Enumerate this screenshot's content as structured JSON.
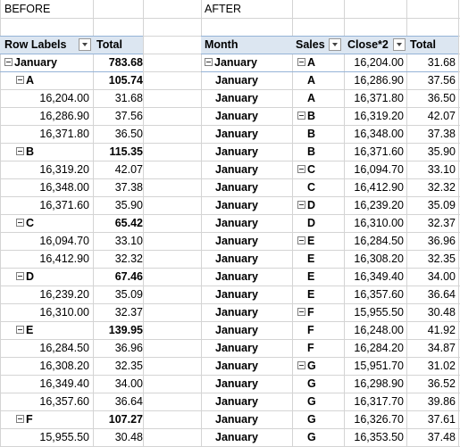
{
  "before": {
    "title": "BEFORE",
    "header": {
      "row_labels": "Row Labels",
      "total": "Total"
    },
    "rows": [
      {
        "kind": "group",
        "label": "January",
        "value": "783.68"
      },
      {
        "kind": "sub",
        "label": "A",
        "value": "105.74"
      },
      {
        "kind": "item",
        "label": "16,204.00",
        "value": "31.68"
      },
      {
        "kind": "item",
        "label": "16,286.90",
        "value": "37.56"
      },
      {
        "kind": "item",
        "label": "16,371.80",
        "value": "36.50"
      },
      {
        "kind": "sub",
        "label": "B",
        "value": "115.35"
      },
      {
        "kind": "item",
        "label": "16,319.20",
        "value": "42.07"
      },
      {
        "kind": "item",
        "label": "16,348.00",
        "value": "37.38"
      },
      {
        "kind": "item",
        "label": "16,371.60",
        "value": "35.90"
      },
      {
        "kind": "sub",
        "label": "C",
        "value": "65.42"
      },
      {
        "kind": "item",
        "label": "16,094.70",
        "value": "33.10"
      },
      {
        "kind": "item",
        "label": "16,412.90",
        "value": "32.32"
      },
      {
        "kind": "sub",
        "label": "D",
        "value": "67.46"
      },
      {
        "kind": "item",
        "label": "16,239.20",
        "value": "35.09"
      },
      {
        "kind": "item",
        "label": "16,310.00",
        "value": "32.37"
      },
      {
        "kind": "sub",
        "label": "E",
        "value": "139.95"
      },
      {
        "kind": "item",
        "label": "16,284.50",
        "value": "36.96"
      },
      {
        "kind": "item",
        "label": "16,308.20",
        "value": "32.35"
      },
      {
        "kind": "item",
        "label": "16,349.40",
        "value": "34.00"
      },
      {
        "kind": "item",
        "label": "16,357.60",
        "value": "36.64"
      },
      {
        "kind": "sub",
        "label": "F",
        "value": "107.27"
      },
      {
        "kind": "item",
        "label": "15,955.50",
        "value": "30.48"
      }
    ]
  },
  "after": {
    "title": "AFTER",
    "header": {
      "month": "Month",
      "sales": "Sales",
      "close": "Close*2",
      "total": "Total"
    },
    "rows": [
      {
        "month": "January",
        "month_expander": true,
        "sales": "A",
        "sales_expander": true,
        "close": "16,204.00",
        "total": "31.68"
      },
      {
        "month": "January",
        "month_expander": false,
        "sales": "A",
        "sales_expander": false,
        "close": "16,286.90",
        "total": "37.56"
      },
      {
        "month": "January",
        "month_expander": false,
        "sales": "A",
        "sales_expander": false,
        "close": "16,371.80",
        "total": "36.50"
      },
      {
        "month": "January",
        "month_expander": false,
        "sales": "B",
        "sales_expander": true,
        "close": "16,319.20",
        "total": "42.07"
      },
      {
        "month": "January",
        "month_expander": false,
        "sales": "B",
        "sales_expander": false,
        "close": "16,348.00",
        "total": "37.38"
      },
      {
        "month": "January",
        "month_expander": false,
        "sales": "B",
        "sales_expander": false,
        "close": "16,371.60",
        "total": "35.90"
      },
      {
        "month": "January",
        "month_expander": false,
        "sales": "C",
        "sales_expander": true,
        "close": "16,094.70",
        "total": "33.10"
      },
      {
        "month": "January",
        "month_expander": false,
        "sales": "C",
        "sales_expander": false,
        "close": "16,412.90",
        "total": "32.32"
      },
      {
        "month": "January",
        "month_expander": false,
        "sales": "D",
        "sales_expander": true,
        "close": "16,239.20",
        "total": "35.09"
      },
      {
        "month": "January",
        "month_expander": false,
        "sales": "D",
        "sales_expander": false,
        "close": "16,310.00",
        "total": "32.37"
      },
      {
        "month": "January",
        "month_expander": false,
        "sales": "E",
        "sales_expander": true,
        "close": "16,284.50",
        "total": "36.96"
      },
      {
        "month": "January",
        "month_expander": false,
        "sales": "E",
        "sales_expander": false,
        "close": "16,308.20",
        "total": "32.35"
      },
      {
        "month": "January",
        "month_expander": false,
        "sales": "E",
        "sales_expander": false,
        "close": "16,349.40",
        "total": "34.00"
      },
      {
        "month": "January",
        "month_expander": false,
        "sales": "E",
        "sales_expander": false,
        "close": "16,357.60",
        "total": "36.64"
      },
      {
        "month": "January",
        "month_expander": false,
        "sales": "F",
        "sales_expander": true,
        "close": "15,955.50",
        "total": "30.48"
      },
      {
        "month": "January",
        "month_expander": false,
        "sales": "F",
        "sales_expander": false,
        "close": "16,248.00",
        "total": "41.92"
      },
      {
        "month": "January",
        "month_expander": false,
        "sales": "F",
        "sales_expander": false,
        "close": "16,284.20",
        "total": "34.87"
      },
      {
        "month": "January",
        "month_expander": false,
        "sales": "G",
        "sales_expander": true,
        "close": "15,951.70",
        "total": "31.02"
      },
      {
        "month": "January",
        "month_expander": false,
        "sales": "G",
        "sales_expander": false,
        "close": "16,298.90",
        "total": "36.52"
      },
      {
        "month": "January",
        "month_expander": false,
        "sales": "G",
        "sales_expander": false,
        "close": "16,317.70",
        "total": "39.86"
      },
      {
        "month": "January",
        "month_expander": false,
        "sales": "G",
        "sales_expander": false,
        "close": "16,326.70",
        "total": "37.61"
      },
      {
        "month": "January",
        "month_expander": false,
        "sales": "G",
        "sales_expander": false,
        "close": "16,353.50",
        "total": "37.48"
      }
    ]
  },
  "colors": {
    "header_fill": "#dce6f1",
    "header_line": "#95b3d7",
    "gridline": "#d4d4d4"
  }
}
